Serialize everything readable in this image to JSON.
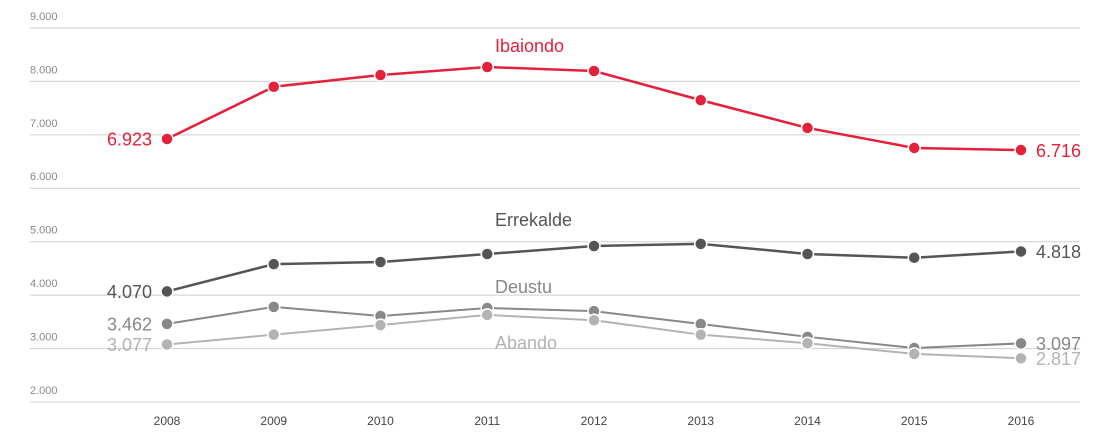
{
  "chart_data": {
    "type": "line",
    "categories": [
      "2008",
      "2009",
      "2010",
      "2011",
      "2012",
      "2013",
      "2014",
      "2015",
      "2016"
    ],
    "series": [
      {
        "name": "Ibaiondo",
        "color": "#e4203a",
        "values": [
          6923,
          7900,
          8120,
          8270,
          8195,
          7650,
          7130,
          6755,
          6716
        ],
        "value_labels": [
          "6.923",
          null,
          null,
          null,
          null,
          null,
          null,
          null,
          "6.716"
        ]
      },
      {
        "name": "Errekalde",
        "color": "#555555",
        "values": [
          4070,
          4580,
          4620,
          4770,
          4920,
          4960,
          4770,
          4700,
          4818
        ],
        "value_labels": [
          "4.070",
          null,
          null,
          null,
          null,
          null,
          null,
          null,
          "4.818"
        ]
      },
      {
        "name": "Deustu",
        "color": "#888888",
        "values": [
          3462,
          3780,
          3610,
          3760,
          3700,
          3460,
          3220,
          3010,
          3097
        ],
        "value_labels": [
          "3.462",
          null,
          null,
          null,
          null,
          null,
          null,
          null,
          "3.097"
        ]
      },
      {
        "name": "Abando",
        "color": "#b3b3b3",
        "values": [
          3077,
          3260,
          3440,
          3630,
          3530,
          3260,
          3100,
          2900,
          2817
        ],
        "value_labels": [
          "3.077",
          null,
          null,
          null,
          null,
          null,
          null,
          null,
          "2.817"
        ]
      }
    ],
    "ylim": [
      2000,
      9000
    ],
    "yticks": [
      {
        "value": 2000,
        "label": "2.000"
      },
      {
        "value": 3000,
        "label": "3.000"
      },
      {
        "value": 4000,
        "label": "4.000"
      },
      {
        "value": 5000,
        "label": "5.000"
      },
      {
        "value": 6000,
        "label": "6.000"
      },
      {
        "value": 7000,
        "label": "7.000"
      },
      {
        "value": 8000,
        "label": "8.000"
      },
      {
        "value": 9000,
        "label": "9.000"
      }
    ],
    "grid": true
  }
}
